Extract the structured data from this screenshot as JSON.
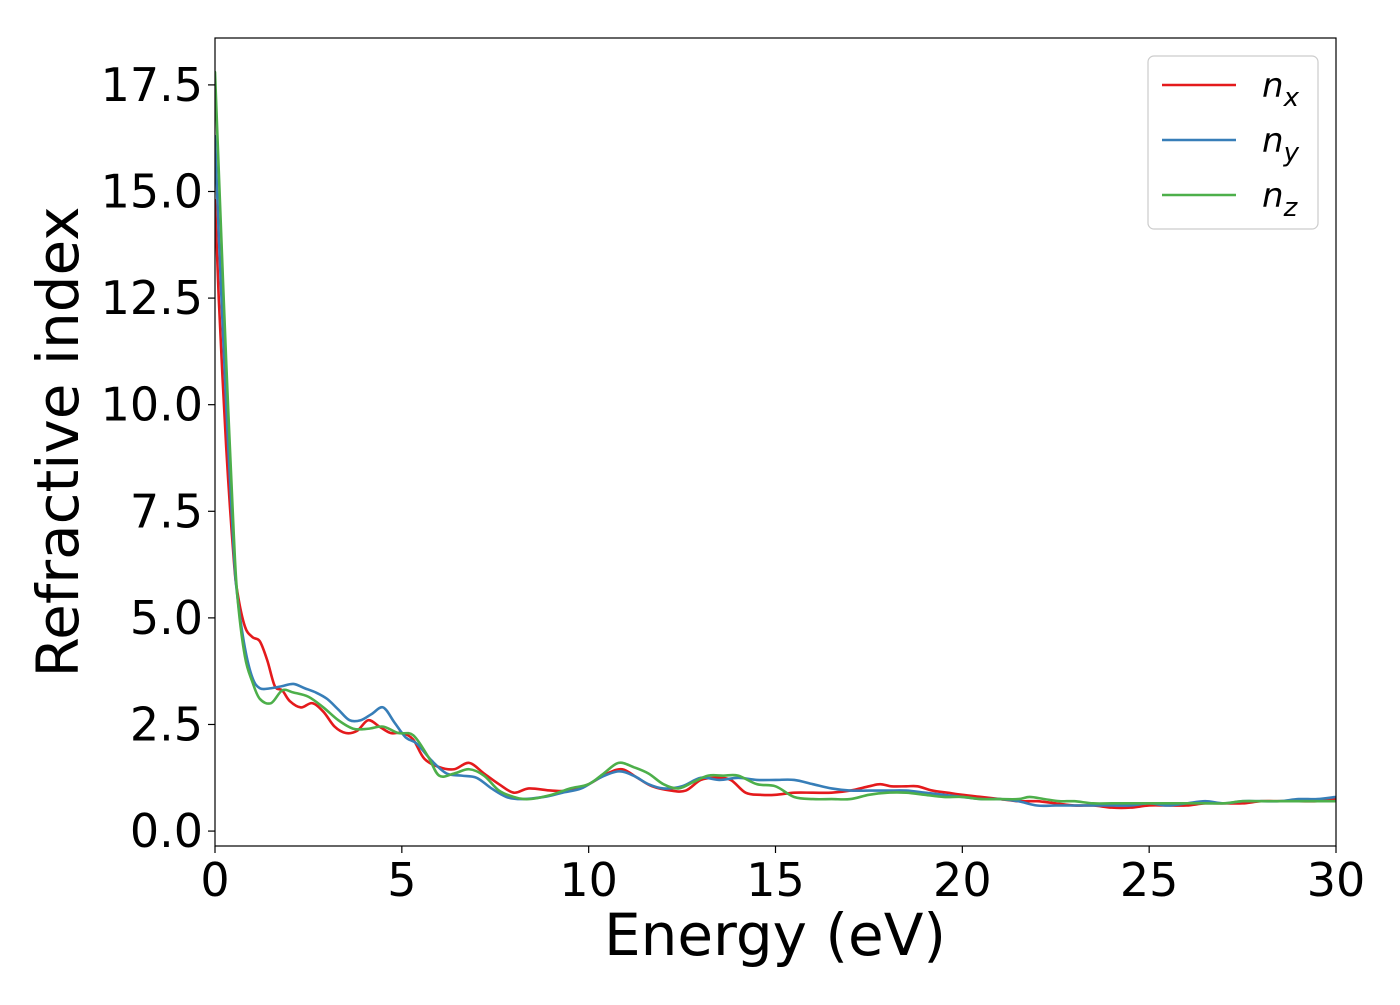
{
  "chart_data": {
    "type": "line",
    "title": "",
    "xlabel": "Energy (eV)",
    "ylabel": "Refractive index",
    "xlim": [
      0,
      30
    ],
    "ylim": [
      -0.35,
      18.6
    ],
    "xticks": [
      0,
      5,
      10,
      15,
      20,
      25,
      30
    ],
    "xtick_labels": [
      "0",
      "5",
      "10",
      "15",
      "20",
      "25",
      "30"
    ],
    "yticks": [
      0.0,
      2.5,
      5.0,
      7.5,
      10.0,
      12.5,
      15.0,
      17.5
    ],
    "ytick_labels": [
      "0.0",
      "2.5",
      "5.0",
      "7.5",
      "10.0",
      "12.5",
      "15.0",
      "17.5"
    ],
    "grid": false,
    "legend_position": "top-right",
    "series": [
      {
        "name": "n_x",
        "legend_base": "n",
        "legend_sub": "x",
        "color": "#e41a1c",
        "x": [
          0,
          0.1,
          0.3,
          0.5,
          0.6,
          0.8,
          1.0,
          1.2,
          1.4,
          1.6,
          1.8,
          2.0,
          2.3,
          2.6,
          2.9,
          3.2,
          3.5,
          3.8,
          4.1,
          4.4,
          4.7,
          5.0,
          5.3,
          5.6,
          6.0,
          6.4,
          6.8,
          7.2,
          7.6,
          8.0,
          8.4,
          9.0,
          9.5,
          10.0,
          10.5,
          10.9,
          11.3,
          11.7,
          12.2,
          12.6,
          13.0,
          13.4,
          13.8,
          14.2,
          14.6,
          15.0,
          15.5,
          16.0,
          16.5,
          17.0,
          17.5,
          17.8,
          18.1,
          18.5,
          18.8,
          19.2,
          19.6,
          20.0,
          20.5,
          21.0,
          21.5,
          22.0,
          22.5,
          23.0,
          23.5,
          24.0,
          24.5,
          25.0,
          25.5,
          26.0,
          26.5,
          27.0,
          27.5,
          28.0,
          28.5,
          29.0,
          29.5,
          30.0
        ],
        "y": [
          14.8,
          12.5,
          9.0,
          6.4,
          5.6,
          4.8,
          4.55,
          4.45,
          4.0,
          3.4,
          3.3,
          3.05,
          2.9,
          3.0,
          2.8,
          2.45,
          2.3,
          2.35,
          2.6,
          2.45,
          2.3,
          2.3,
          2.15,
          1.7,
          1.5,
          1.45,
          1.6,
          1.35,
          1.1,
          0.9,
          1.0,
          0.95,
          0.95,
          1.1,
          1.35,
          1.45,
          1.25,
          1.05,
          0.95,
          0.95,
          1.2,
          1.25,
          1.2,
          0.9,
          0.85,
          0.85,
          0.9,
          0.9,
          0.9,
          0.95,
          1.05,
          1.1,
          1.05,
          1.05,
          1.05,
          0.95,
          0.9,
          0.85,
          0.8,
          0.75,
          0.7,
          0.7,
          0.65,
          0.6,
          0.6,
          0.55,
          0.55,
          0.6,
          0.6,
          0.6,
          0.65,
          0.65,
          0.65,
          0.7,
          0.7,
          0.7,
          0.7,
          0.75
        ]
      },
      {
        "name": "n_y",
        "legend_base": "n",
        "legend_sub": "y",
        "color": "#377eb8",
        "x": [
          0,
          0.1,
          0.3,
          0.5,
          0.6,
          0.8,
          1.0,
          1.2,
          1.5,
          1.8,
          2.1,
          2.4,
          2.7,
          3.0,
          3.3,
          3.6,
          3.9,
          4.2,
          4.5,
          4.8,
          5.1,
          5.4,
          5.8,
          6.2,
          6.6,
          7.0,
          7.4,
          7.8,
          8.2,
          8.8,
          9.3,
          9.8,
          10.3,
          10.8,
          11.2,
          11.6,
          12.0,
          12.5,
          13.0,
          13.5,
          14.0,
          14.5,
          15.0,
          15.5,
          16.0,
          16.5,
          17.0,
          17.5,
          18.0,
          18.5,
          19.0,
          19.5,
          20.0,
          20.5,
          21.0,
          21.5,
          22.0,
          22.5,
          23.0,
          23.5,
          24.0,
          24.5,
          25.0,
          25.5,
          26.0,
          26.5,
          27.0,
          27.5,
          28.0,
          28.5,
          29.0,
          29.5,
          30.0
        ],
        "y": [
          16.3,
          14.0,
          10.0,
          6.6,
          5.5,
          4.3,
          3.6,
          3.35,
          3.35,
          3.4,
          3.45,
          3.35,
          3.25,
          3.1,
          2.85,
          2.6,
          2.6,
          2.75,
          2.9,
          2.55,
          2.2,
          2.05,
          1.65,
          1.35,
          1.3,
          1.25,
          1.0,
          0.8,
          0.75,
          0.8,
          0.9,
          1.0,
          1.25,
          1.4,
          1.3,
          1.1,
          1.0,
          1.05,
          1.25,
          1.2,
          1.25,
          1.2,
          1.2,
          1.2,
          1.1,
          1.0,
          0.95,
          0.95,
          0.95,
          0.95,
          0.9,
          0.85,
          0.8,
          0.75,
          0.75,
          0.7,
          0.6,
          0.6,
          0.6,
          0.6,
          0.6,
          0.6,
          0.65,
          0.6,
          0.65,
          0.7,
          0.65,
          0.7,
          0.7,
          0.7,
          0.75,
          0.75,
          0.8
        ]
      },
      {
        "name": "n_z",
        "legend_base": "n",
        "legend_sub": "z",
        "color": "#4daf4a",
        "x": [
          0,
          0.1,
          0.3,
          0.5,
          0.6,
          0.8,
          1.0,
          1.2,
          1.5,
          1.8,
          2.1,
          2.5,
          2.9,
          3.3,
          3.7,
          4.1,
          4.5,
          4.9,
          5.3,
          5.7,
          6.0,
          6.4,
          6.8,
          7.2,
          7.6,
          8.0,
          8.4,
          9.0,
          9.5,
          10.0,
          10.4,
          10.8,
          11.2,
          11.6,
          12.0,
          12.4,
          12.8,
          13.2,
          13.6,
          14.0,
          14.5,
          15.0,
          15.5,
          16.0,
          16.5,
          17.0,
          17.5,
          18.0,
          18.5,
          19.0,
          19.5,
          20.0,
          20.5,
          21.0,
          21.5,
          21.8,
          22.2,
          22.6,
          23.0,
          23.5,
          24.0,
          24.5,
          25.0,
          25.5,
          26.0,
          26.5,
          27.0,
          27.5,
          28.0,
          28.5,
          29.0,
          29.5,
          30.0
        ],
        "y": [
          17.8,
          15.5,
          11.0,
          7.0,
          5.5,
          4.1,
          3.5,
          3.1,
          3.0,
          3.3,
          3.25,
          3.15,
          2.9,
          2.6,
          2.4,
          2.4,
          2.45,
          2.3,
          2.25,
          1.75,
          1.3,
          1.35,
          1.45,
          1.3,
          0.95,
          0.8,
          0.75,
          0.85,
          1.0,
          1.1,
          1.35,
          1.6,
          1.5,
          1.35,
          1.1,
          1.0,
          1.15,
          1.3,
          1.3,
          1.3,
          1.1,
          1.05,
          0.8,
          0.75,
          0.75,
          0.75,
          0.85,
          0.9,
          0.9,
          0.85,
          0.8,
          0.8,
          0.75,
          0.75,
          0.75,
          0.8,
          0.75,
          0.7,
          0.7,
          0.65,
          0.65,
          0.65,
          0.65,
          0.65,
          0.65,
          0.65,
          0.65,
          0.7,
          0.7,
          0.7,
          0.7,
          0.7,
          0.7
        ]
      }
    ]
  }
}
